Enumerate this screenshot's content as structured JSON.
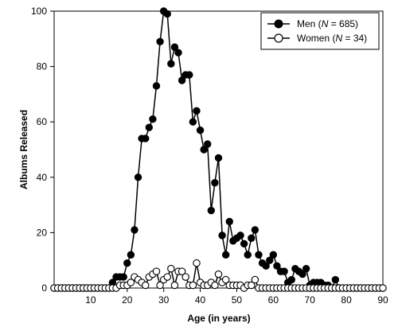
{
  "chart_data": {
    "type": "line",
    "xlabel": "Age (in years)",
    "ylabel": "Albums Released",
    "xlim": [
      0,
      90
    ],
    "ylim": [
      0,
      100
    ],
    "x_ticks": [
      10,
      20,
      30,
      40,
      50,
      60,
      70,
      80,
      90
    ],
    "y_ticks": [
      0,
      20,
      40,
      60,
      80,
      100
    ],
    "grid": false,
    "legend_position": "top-right",
    "legend": [
      {
        "prefix": "Men (",
        "n_symbol": "N",
        "suffix": " = 685)",
        "marker": "filled"
      },
      {
        "prefix": "Women (",
        "n_symbol": "N",
        "suffix": " = 34)",
        "marker": "open"
      }
    ],
    "series": [
      {
        "name": "Men (N = 685)",
        "marker": "filled",
        "x": [
          0,
          1,
          2,
          3,
          4,
          5,
          6,
          7,
          8,
          9,
          10,
          11,
          12,
          13,
          14,
          15,
          16,
          17,
          18,
          19,
          20,
          21,
          22,
          23,
          24,
          25,
          26,
          27,
          28,
          29,
          30,
          31,
          32,
          33,
          34,
          35,
          36,
          37,
          38,
          39,
          40,
          41,
          42,
          43,
          44,
          45,
          46,
          47,
          48,
          49,
          50,
          51,
          52,
          53,
          54,
          55,
          56,
          57,
          58,
          59,
          60,
          61,
          62,
          63,
          64,
          65,
          66,
          67,
          68,
          69,
          70,
          71,
          72,
          73,
          74,
          75,
          76,
          77,
          78,
          79,
          80,
          81,
          82,
          83,
          84,
          85,
          86,
          87,
          88,
          89,
          90
        ],
        "y": [
          0,
          0,
          0,
          0,
          0,
          0,
          0,
          0,
          0,
          0,
          0,
          0,
          0,
          0,
          0,
          0,
          2,
          4,
          4,
          4,
          9,
          12,
          21,
          40,
          54,
          54,
          58,
          61,
          73,
          89,
          100,
          99,
          81,
          87,
          85,
          75,
          77,
          77,
          60,
          64,
          57,
          50,
          52,
          28,
          38,
          47,
          19,
          12,
          24,
          17,
          18,
          19,
          16,
          12,
          18,
          21,
          12,
          9,
          8,
          10,
          12,
          8,
          6,
          6,
          2,
          3,
          7,
          6,
          5,
          7,
          1,
          2,
          2,
          2,
          1,
          1,
          0,
          3,
          0,
          0,
          0,
          0,
          0,
          0,
          0,
          0,
          0,
          0,
          0,
          0,
          0
        ]
      },
      {
        "name": "Women (N = 34)",
        "marker": "open",
        "x": [
          0,
          1,
          2,
          3,
          4,
          5,
          6,
          7,
          8,
          9,
          10,
          11,
          12,
          13,
          14,
          15,
          16,
          17,
          18,
          19,
          20,
          21,
          22,
          23,
          24,
          25,
          26,
          27,
          28,
          29,
          30,
          31,
          32,
          33,
          34,
          35,
          36,
          37,
          38,
          39,
          40,
          41,
          42,
          43,
          44,
          45,
          46,
          47,
          48,
          49,
          50,
          51,
          52,
          53,
          54,
          55,
          56,
          57,
          58,
          59,
          60,
          61,
          62,
          63,
          64,
          65,
          66,
          67,
          68,
          69,
          70,
          71,
          72,
          73,
          74,
          75,
          76,
          77,
          78,
          79,
          80,
          81,
          82,
          83,
          84,
          85,
          86,
          87,
          88,
          89,
          90
        ],
        "y": [
          0,
          0,
          0,
          0,
          0,
          0,
          0,
          0,
          0,
          0,
          0,
          0,
          0,
          0,
          0,
          0,
          0,
          0,
          1,
          1,
          1,
          2,
          4,
          3,
          2,
          1,
          4,
          5,
          6,
          1,
          3,
          4,
          7,
          1,
          6,
          6,
          4,
          1,
          1,
          9,
          2,
          1,
          1,
          2,
          1,
          5,
          2,
          3,
          1,
          1,
          1,
          1,
          0,
          1,
          1,
          3,
          0,
          0,
          0,
          0,
          0,
          0,
          0,
          0,
          0,
          0,
          0,
          0,
          0,
          0,
          0,
          0,
          0,
          0,
          0,
          0,
          0,
          0,
          0,
          0,
          0,
          0,
          0,
          0,
          0,
          0,
          0,
          0,
          0,
          0,
          0
        ]
      }
    ]
  }
}
